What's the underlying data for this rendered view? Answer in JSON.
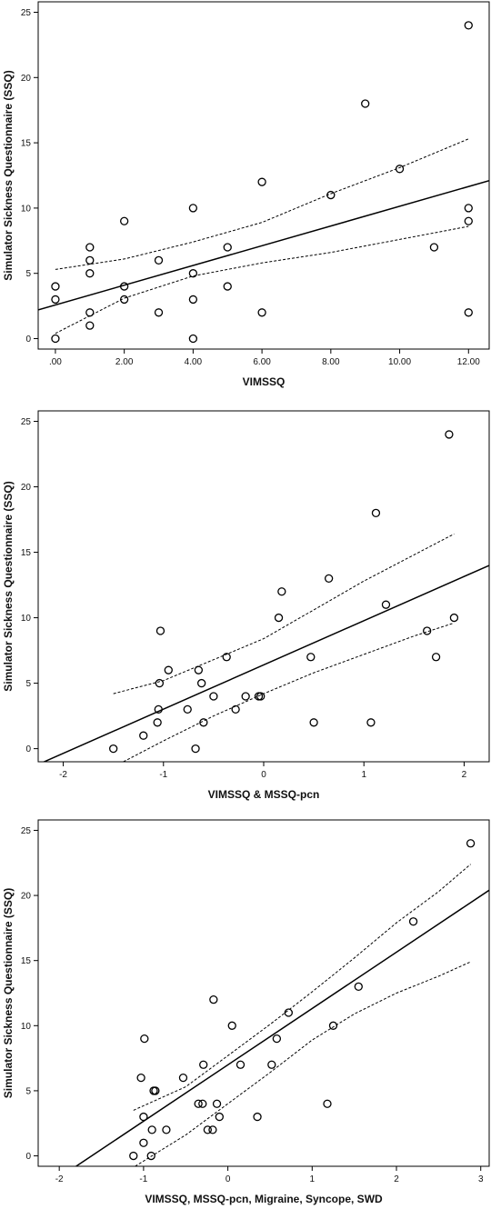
{
  "chart_data": [
    {
      "type": "scatter",
      "xlabel": "VIMSSQ",
      "ylabel": "Simulator Sickness Questionnaire (SSQ)",
      "xlim": [
        -0.5,
        12.6
      ],
      "ylim": [
        -0.8,
        25.8
      ],
      "xticks": [
        0,
        2,
        4,
        6,
        8,
        10,
        12
      ],
      "xtick_labels": [
        ".00",
        "2.00",
        "4.00",
        "6.00",
        "8.00",
        "10.00",
        "12.00"
      ],
      "yticks": [
        0,
        5,
        10,
        15,
        20,
        25
      ],
      "ytick_labels": [
        "0",
        "5",
        "10",
        "15",
        "20",
        "25"
      ],
      "points": [
        [
          0,
          4
        ],
        [
          0,
          3
        ],
        [
          0,
          0
        ],
        [
          1,
          7
        ],
        [
          1,
          6
        ],
        [
          1,
          5
        ],
        [
          1,
          2
        ],
        [
          1,
          1
        ],
        [
          2,
          9
        ],
        [
          2,
          4
        ],
        [
          2,
          3
        ],
        [
          3,
          6
        ],
        [
          3,
          2
        ],
        [
          4,
          10
        ],
        [
          4,
          5
        ],
        [
          4,
          3
        ],
        [
          4,
          0
        ],
        [
          5,
          7
        ],
        [
          5,
          4
        ],
        [
          6,
          12
        ],
        [
          6,
          2
        ],
        [
          8,
          11
        ],
        [
          9,
          18
        ],
        [
          10,
          13
        ],
        [
          11,
          7
        ],
        [
          12,
          24
        ],
        [
          12,
          10
        ],
        [
          12,
          9
        ],
        [
          12,
          2
        ]
      ],
      "fit_line": [
        [
          -0.5,
          2.2
        ],
        [
          12.6,
          12.1
        ]
      ],
      "ci_lower": [
        [
          0,
          0.4
        ],
        [
          2,
          3.1
        ],
        [
          4,
          4.8
        ],
        [
          6,
          5.8
        ],
        [
          8,
          6.6
        ],
        [
          10,
          7.6
        ],
        [
          12,
          8.6
        ]
      ],
      "ci_upper": [
        [
          0,
          5.3
        ],
        [
          2,
          6.1
        ],
        [
          4,
          7.4
        ],
        [
          6,
          8.9
        ],
        [
          8,
          11.1
        ],
        [
          10,
          13.1
        ],
        [
          12,
          15.3
        ]
      ]
    },
    {
      "type": "scatter",
      "xlabel": "VIMSSQ & MSSQ-pcn",
      "ylabel": "Simulator Sickness Questionnaire (SSQ)",
      "xlim": [
        -2.25,
        2.25
      ],
      "ylim": [
        -1.0,
        25.8
      ],
      "xticks": [
        -2,
        -1,
        0,
        1,
        2
      ],
      "xtick_labels": [
        "-2",
        "-1",
        "0",
        "1",
        "2"
      ],
      "yticks": [
        0,
        5,
        10,
        15,
        20,
        25
      ],
      "ytick_labels": [
        "0",
        "5",
        "10",
        "15",
        "20",
        "25"
      ],
      "points": [
        [
          -1.5,
          0
        ],
        [
          -1.2,
          1
        ],
        [
          -1.06,
          2
        ],
        [
          -1.05,
          3
        ],
        [
          -1.04,
          5
        ],
        [
          -1.03,
          9
        ],
        [
          -0.95,
          6
        ],
        [
          -0.76,
          3
        ],
        [
          -0.68,
          0
        ],
        [
          -0.65,
          6
        ],
        [
          -0.62,
          5
        ],
        [
          -0.6,
          2
        ],
        [
          -0.5,
          4
        ],
        [
          -0.37,
          7
        ],
        [
          -0.28,
          3
        ],
        [
          -0.18,
          4
        ],
        [
          -0.05,
          4
        ],
        [
          -0.03,
          4
        ],
        [
          0.15,
          10
        ],
        [
          0.18,
          12
        ],
        [
          0.47,
          7
        ],
        [
          0.5,
          2
        ],
        [
          0.65,
          13
        ],
        [
          1.07,
          2
        ],
        [
          1.12,
          18
        ],
        [
          1.22,
          11
        ],
        [
          1.63,
          9
        ],
        [
          1.72,
          7
        ],
        [
          1.85,
          24
        ],
        [
          1.9,
          10
        ]
      ],
      "fit_line": [
        [
          -2.25,
          -1.2
        ],
        [
          2.25,
          14.0
        ]
      ],
      "ci_lower": [
        [
          -1.4,
          -1.0
        ],
        [
          -1.0,
          0.6
        ],
        [
          -0.5,
          2.5
        ],
        [
          0,
          4.2
        ],
        [
          0.5,
          5.8
        ],
        [
          1.0,
          7.2
        ],
        [
          1.5,
          8.6
        ],
        [
          1.9,
          9.6
        ]
      ],
      "ci_upper": [
        [
          -1.5,
          4.2
        ],
        [
          -1.0,
          5.2
        ],
        [
          -0.5,
          6.8
        ],
        [
          0,
          8.4
        ],
        [
          0.5,
          10.6
        ],
        [
          1.0,
          12.8
        ],
        [
          1.5,
          14.8
        ],
        [
          1.9,
          16.4
        ]
      ]
    },
    {
      "type": "scatter",
      "xlabel": "VIMSSQ, MSSQ-pcn, Migraine, Syncope, SWD",
      "ylabel": "Simulator Sickness Questionnaire (SSQ)",
      "xlim": [
        -2.25,
        3.1
      ],
      "ylim": [
        -0.8,
        25.8
      ],
      "xticks": [
        -2,
        -1,
        0,
        1,
        2,
        3
      ],
      "xtick_labels": [
        "-2",
        "-1",
        "0",
        "1",
        "2",
        "3"
      ],
      "yticks": [
        0,
        5,
        10,
        15,
        20,
        25
      ],
      "ytick_labels": [
        "0",
        "5",
        "10",
        "15",
        "20",
        "25"
      ],
      "points": [
        [
          -1.12,
          0
        ],
        [
          -1.0,
          1
        ],
        [
          -1.03,
          6
        ],
        [
          -0.99,
          9
        ],
        [
          -1.0,
          3
        ],
        [
          -0.91,
          0
        ],
        [
          -0.88,
          5
        ],
        [
          -0.86,
          5
        ],
        [
          -0.9,
          2
        ],
        [
          -0.73,
          2
        ],
        [
          -0.53,
          6
        ],
        [
          -0.35,
          4
        ],
        [
          -0.3,
          4
        ],
        [
          -0.29,
          7
        ],
        [
          -0.24,
          2
        ],
        [
          -0.18,
          2
        ],
        [
          -0.17,
          12
        ],
        [
          -0.13,
          4
        ],
        [
          -0.1,
          3
        ],
        [
          0.05,
          10
        ],
        [
          0.15,
          7
        ],
        [
          0.35,
          3
        ],
        [
          0.52,
          7
        ],
        [
          0.58,
          9
        ],
        [
          0.72,
          11
        ],
        [
          1.18,
          4
        ],
        [
          1.25,
          10
        ],
        [
          1.55,
          13
        ],
        [
          2.2,
          18
        ],
        [
          2.88,
          24
        ]
      ],
      "fit_line": [
        [
          -1.8,
          -0.8
        ],
        [
          3.1,
          20.4
        ]
      ],
      "ci_lower": [
        [
          -1.1,
          -0.8
        ],
        [
          -0.5,
          1.6
        ],
        [
          0,
          4.0
        ],
        [
          0.5,
          6.4
        ],
        [
          1.0,
          8.9
        ],
        [
          1.5,
          10.9
        ],
        [
          2.0,
          12.5
        ],
        [
          2.5,
          13.8
        ],
        [
          2.88,
          14.9
        ]
      ],
      "ci_upper": [
        [
          -1.12,
          3.5
        ],
        [
          -0.5,
          5.3
        ],
        [
          0,
          7.7
        ],
        [
          0.5,
          10.1
        ],
        [
          1.0,
          12.6
        ],
        [
          1.5,
          15.2
        ],
        [
          2.0,
          17.9
        ],
        [
          2.5,
          20.3
        ],
        [
          2.88,
          22.4
        ]
      ]
    }
  ]
}
